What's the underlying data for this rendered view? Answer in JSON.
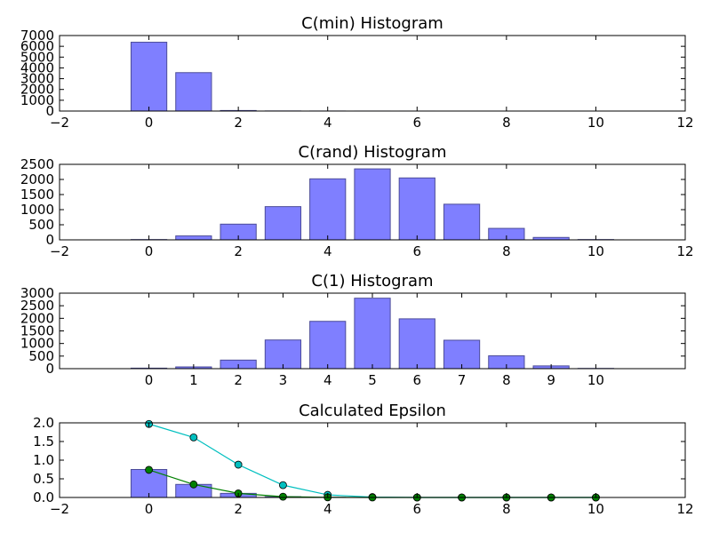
{
  "figure": {
    "background": "#ffffff"
  },
  "style": {
    "bar_fill": "#7f7fff",
    "bar_stroke": "#4c4c99",
    "line_colors": [
      "#00bfbf",
      "#008000"
    ]
  },
  "chart_data": [
    {
      "type": "bar",
      "title": "C(min) Histogram",
      "xlim": [
        -2,
        12
      ],
      "ylim": [
        0,
        7000
      ],
      "xticks": [
        "-2",
        "0",
        "2",
        "4",
        "6",
        "8",
        "10",
        "12"
      ],
      "yticks": [
        "0",
        "1000",
        "2000",
        "3000",
        "4000",
        "5000",
        "6000",
        "7000"
      ],
      "x": [
        0,
        1,
        2,
        3,
        4,
        5,
        6,
        7,
        8,
        9,
        10
      ],
      "values": [
        6380,
        3560,
        50,
        10,
        5,
        2,
        1,
        0,
        0,
        0,
        0
      ],
      "grid": false
    },
    {
      "type": "bar",
      "title": "C(rand) Histogram",
      "xlim": [
        -2,
        12
      ],
      "ylim": [
        0,
        2500
      ],
      "xticks": [
        "-2",
        "0",
        "2",
        "4",
        "6",
        "8",
        "10",
        "12"
      ],
      "yticks": [
        "0",
        "500",
        "1000",
        "1500",
        "2000",
        "2500"
      ],
      "x": [
        0,
        1,
        2,
        3,
        4,
        5,
        6,
        7,
        8,
        9,
        10
      ],
      "values": [
        10,
        130,
        520,
        1100,
        2020,
        2350,
        2050,
        1180,
        380,
        80,
        10
      ],
      "grid": false
    },
    {
      "type": "bar",
      "title": "C(1) Histogram",
      "xlim": [
        -2,
        12
      ],
      "ylim": [
        0,
        3000
      ],
      "xticks": [
        "0",
        "1",
        "2",
        "3",
        "4",
        "5",
        "6",
        "7",
        "8",
        "9",
        "10"
      ],
      "yticks": [
        "0",
        "500",
        "1000",
        "1500",
        "2000",
        "2500",
        "3000"
      ],
      "x": [
        0,
        1,
        2,
        3,
        4,
        5,
        6,
        7,
        8,
        9,
        10
      ],
      "values": [
        20,
        70,
        340,
        1140,
        1880,
        2800,
        1980,
        1130,
        510,
        110,
        10
      ],
      "grid": false
    },
    {
      "type": "bar+line",
      "title": "Calculated Epsilon",
      "xlim": [
        -2,
        12
      ],
      "ylim": [
        0,
        2.0
      ],
      "xticks": [
        "-2",
        "0",
        "2",
        "4",
        "6",
        "8",
        "10",
        "12"
      ],
      "yticks": [
        "0.0",
        "0.5",
        "1.0",
        "1.5",
        "2.0"
      ],
      "x": [
        0,
        1,
        2,
        3,
        4,
        5,
        6,
        7,
        8,
        9,
        10
      ],
      "values": [
        0.75,
        0.35,
        0.11,
        0.02,
        0.005,
        0,
        0,
        0,
        0,
        0,
        0
      ],
      "series": [
        {
          "values": [
            1.97,
            1.61,
            0.88,
            0.33,
            0.07,
            0.01,
            0,
            0,
            0,
            0,
            0
          ]
        },
        {
          "values": [
            0.74,
            0.35,
            0.11,
            0.02,
            0.004,
            0,
            0,
            0,
            0,
            0,
            0
          ]
        }
      ],
      "grid": false
    }
  ]
}
